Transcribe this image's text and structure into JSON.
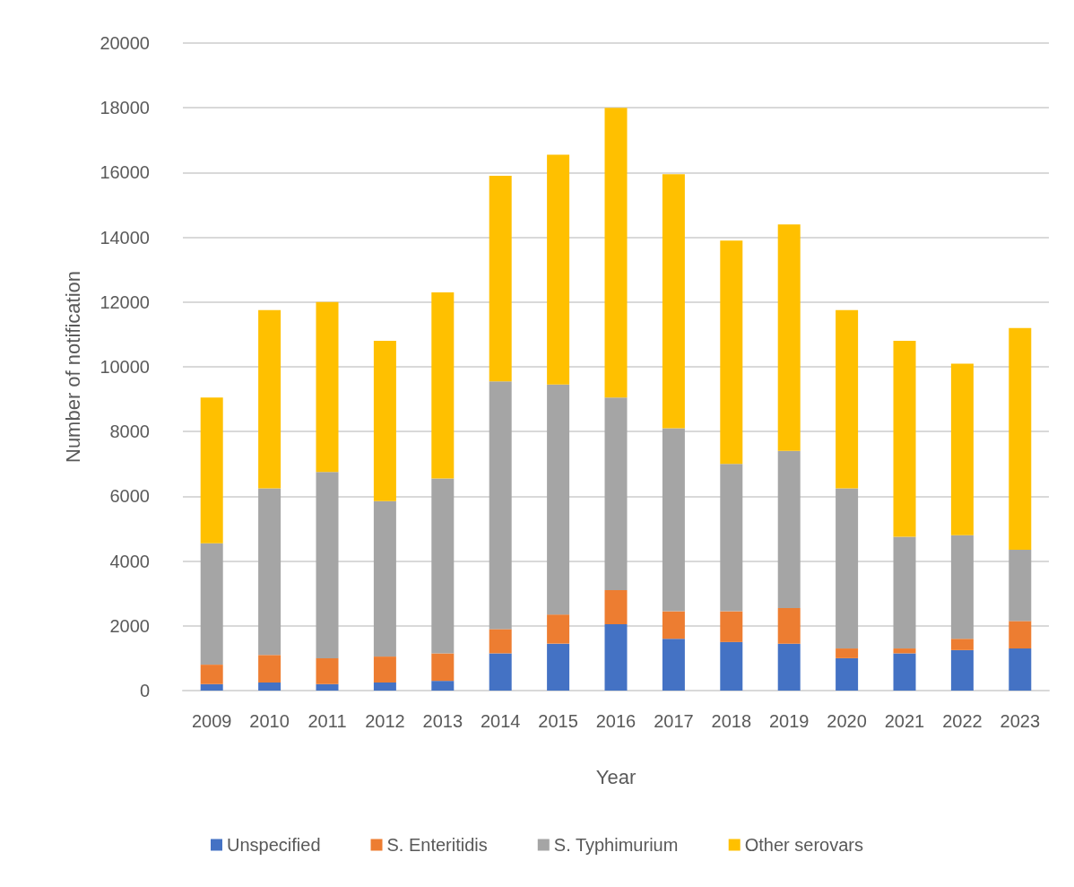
{
  "chart_data": {
    "type": "bar",
    "stacked": true,
    "xlabel": "Year",
    "ylabel": "Number of notification",
    "categories": [
      "2009",
      "2010",
      "2011",
      "2012",
      "2013",
      "2014",
      "2015",
      "2016",
      "2017",
      "2018",
      "2019",
      "2020",
      "2021",
      "2022",
      "2023"
    ],
    "series": [
      {
        "name": "Unspecified",
        "color": "#4472c4",
        "values": [
          200,
          250,
          200,
          250,
          300,
          1150,
          1450,
          2050,
          1600,
          1500,
          1450,
          1000,
          1150,
          1250,
          1300
        ]
      },
      {
        "name": "S. Enteritidis",
        "color": "#ed7d31",
        "values": [
          600,
          850,
          800,
          800,
          850,
          750,
          900,
          1050,
          850,
          950,
          1100,
          300,
          150,
          350,
          850
        ]
      },
      {
        "name": "S. Typhimurium",
        "color": "#a5a5a5",
        "values": [
          3750,
          5150,
          5750,
          4800,
          5400,
          7650,
          7100,
          5950,
          5650,
          4550,
          4850,
          4950,
          3450,
          3200,
          2200
        ]
      },
      {
        "name": "Other serovars",
        "color": "#ffc000",
        "values": [
          4500,
          5500,
          5250,
          4950,
          5750,
          6350,
          7100,
          8950,
          7850,
          6900,
          7000,
          5500,
          6050,
          5300,
          6850
        ]
      }
    ],
    "ylim": [
      0,
      20000
    ],
    "yticks": [
      0,
      2000,
      4000,
      6000,
      8000,
      10000,
      12000,
      14000,
      16000,
      18000,
      20000
    ],
    "grid": "y",
    "legend": "bottom"
  }
}
